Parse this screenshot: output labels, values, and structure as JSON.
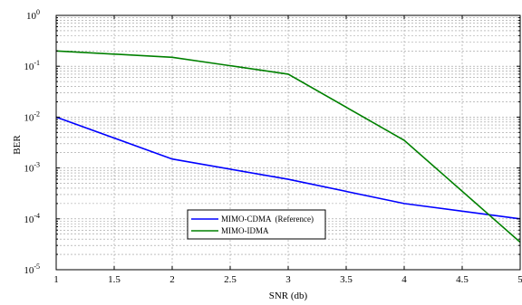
{
  "chart_data": {
    "type": "line",
    "xlabel": "SNR (db)",
    "ylabel": "BER",
    "xlim": [
      1,
      5
    ],
    "ylim": [
      1e-05,
      1
    ],
    "yscale": "log",
    "grid": true,
    "legend_position": "lower-left",
    "x_ticks": [
      "1",
      "1.5",
      "2",
      "2.5",
      "3",
      "3.5",
      "4",
      "4.5",
      "5"
    ],
    "y_ticks": [
      {
        "base": "10",
        "exp": "0"
      },
      {
        "base": "10",
        "exp": "-1"
      },
      {
        "base": "10",
        "exp": "-2"
      },
      {
        "base": "10",
        "exp": "-3"
      },
      {
        "base": "10",
        "exp": "-4"
      },
      {
        "base": "10",
        "exp": "-5"
      }
    ],
    "x": [
      1,
      2,
      3,
      4,
      5
    ],
    "series": [
      {
        "name": "MIMO-CDMA  (Reference)",
        "color": "#0000ff",
        "values": [
          0.01,
          0.0015,
          0.0006,
          0.0002,
          0.0001
        ]
      },
      {
        "name": "MIMO-IDMA",
        "color": "#008000",
        "values": [
          0.2,
          0.15,
          0.07,
          0.0035,
          3.47e-05
        ]
      }
    ]
  }
}
